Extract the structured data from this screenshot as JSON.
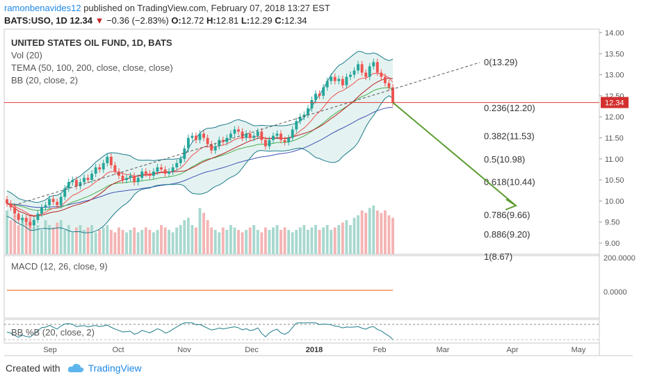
{
  "header": {
    "author": "ramonbenavides12",
    "published": "published on TradingView.com, February 07, 2018 13:27 EST"
  },
  "ticker": {
    "symbol": "BATS:USO, 1D",
    "price": "12.34",
    "change": "−0.36 (−2.83%)",
    "open_label": "O:",
    "open": "12.72",
    "high_label": "H:",
    "high": "12.81",
    "low_label": "L:",
    "low": "12.29",
    "close_label": "C:",
    "close": "12.34",
    "down_symbol": "▼"
  },
  "legend": {
    "title": "UNITED STATES OIL FUND, 1D, BATS",
    "vol": "Vol (20)",
    "tema": "TEMA (50, 100, 200, close, close, close)",
    "bb": "BB (20, close, 2)",
    "macd": "MACD (12, 26, close, 9)",
    "bbpct": "BB %B (20, close, 2)"
  },
  "footer": {
    "created": "Created with",
    "brand": "TradingView"
  },
  "colors": {
    "up": "#26a69a",
    "down": "#ef5350",
    "bb_band": "#1b7a8a",
    "bb_fill": "#e4f3f1",
    "bb_basis": "#b71c1c",
    "tema_red": "#ef5350",
    "tema_green": "#4caf50",
    "tema_blue": "#3f51b5",
    "arrow": "#5b9b2f",
    "price_line": "#e53935",
    "macd_line": "#e65100"
  },
  "chart_data": {
    "type": "candlestick",
    "title": "UNITED STATES OIL FUND, 1D, BATS",
    "price_axis": {
      "ylim": [
        8.7,
        14.0
      ],
      "ticks": [
        "14.00",
        "13.50",
        "13.00",
        "12.50",
        "12.00",
        "11.50",
        "11.00",
        "10.50",
        "10.00",
        "9.50",
        "9.00"
      ]
    },
    "macd_axis": {
      "ticks": [
        "200.0000",
        "0.0000"
      ]
    },
    "x_axis": {
      "ticks": [
        "Sep",
        "Oct",
        "Nov",
        "Dec",
        "2018",
        "Feb",
        "Mar",
        "Apr",
        "May"
      ]
    },
    "last_price": "12.34",
    "fibonacci": [
      {
        "label": "0(13.29)",
        "value": 13.29
      },
      {
        "label": "0.236(12.20)",
        "value": 12.2
      },
      {
        "label": "0.382(11.53)",
        "value": 11.53
      },
      {
        "label": "0.5(10.98)",
        "value": 10.98
      },
      {
        "label": "0.618(10.44)",
        "value": 10.44
      },
      {
        "label": "0.786(9.66)",
        "value": 9.66
      },
      {
        "label": "0.886(9.20)",
        "value": 9.2
      },
      {
        "label": "1(8.67)",
        "value": 8.67
      }
    ],
    "series": [
      {
        "name": "Close",
        "values": [
          9.94,
          9.85,
          9.7,
          9.55,
          9.6,
          9.5,
          9.42,
          9.55,
          9.7,
          9.85,
          9.9,
          10.05,
          9.98,
          9.9,
          10.1,
          10.3,
          10.45,
          10.5,
          10.35,
          10.45,
          10.55,
          10.5,
          10.65,
          10.8,
          10.75,
          10.9,
          11.05,
          10.85,
          10.7,
          10.6,
          10.5,
          10.55,
          10.6,
          10.45,
          10.55,
          10.7,
          10.65,
          10.6,
          10.7,
          10.8,
          10.75,
          10.65,
          10.7,
          10.8,
          10.9,
          11.0,
          11.25,
          11.5,
          11.55,
          11.45,
          11.6,
          11.5,
          11.35,
          11.2,
          11.3,
          11.45,
          11.4,
          11.5,
          11.6,
          11.7,
          11.65,
          11.5,
          11.6,
          11.5,
          11.55,
          11.65,
          11.45,
          11.3,
          11.45,
          11.55,
          11.6,
          11.45,
          11.4,
          11.5,
          11.7,
          11.9,
          12.0,
          12.05,
          12.2,
          12.4,
          12.55,
          12.5,
          12.7,
          12.85,
          12.95,
          12.85,
          12.9,
          12.75,
          12.95,
          13.0,
          13.1,
          13.25,
          13.05,
          12.95,
          13.2,
          13.3,
          13.05,
          12.95,
          12.8,
          12.7,
          12.34
        ]
      },
      {
        "name": "Volume",
        "values": [
          0.9,
          0.7,
          0.8,
          0.6,
          0.75,
          0.65,
          0.8,
          0.55,
          0.6,
          0.5,
          0.7,
          0.6,
          0.55,
          0.65,
          0.7,
          0.5,
          0.6,
          0.45,
          0.55,
          0.6,
          0.5,
          0.55,
          0.6,
          0.45,
          0.5,
          0.55,
          0.6,
          0.5,
          0.45,
          0.55,
          0.5,
          0.45,
          0.5,
          0.55,
          0.45,
          0.5,
          0.55,
          0.5,
          0.45,
          0.5,
          0.6,
          0.55,
          0.5,
          0.45,
          0.55,
          0.6,
          0.7,
          0.75,
          0.6,
          0.55,
          0.95,
          0.85,
          0.7,
          0.55,
          0.5,
          0.45,
          0.55,
          0.5,
          0.6,
          0.55,
          0.5,
          0.45,
          0.5,
          0.55,
          0.6,
          0.5,
          0.45,
          0.55,
          0.5,
          0.55,
          0.6,
          0.5,
          0.55,
          0.5,
          0.45,
          0.5,
          0.55,
          0.6,
          0.5,
          0.55,
          0.6,
          0.5,
          0.55,
          0.6,
          0.5,
          0.55,
          0.6,
          0.65,
          0.7,
          0.6,
          0.75,
          0.8,
          0.9,
          0.85,
          0.95,
          1.0,
          0.9,
          0.85,
          0.9,
          0.8,
          0.75
        ]
      }
    ]
  }
}
